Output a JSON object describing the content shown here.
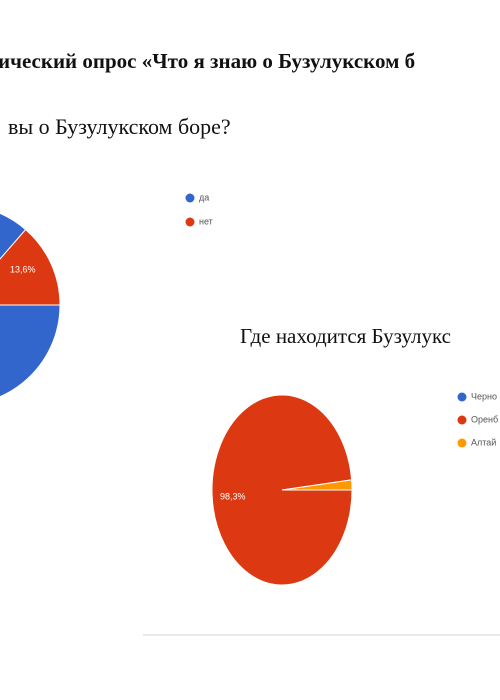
{
  "title": "ический опрос «Что я знаю о Бузулукском б",
  "chart_data": [
    {
      "type": "pie",
      "title": "вы о Бузулукском боре?",
      "categories": [
        "да",
        "нет"
      ],
      "values": [
        86.4,
        13.6
      ],
      "value_labels": [
        null,
        "13,6%"
      ],
      "colors": [
        "#3366cc",
        "#dc3912"
      ]
    },
    {
      "type": "pie",
      "title": "Где находится Бузулукс",
      "categories": [
        "Черно",
        "Оренб",
        "Алтай"
      ],
      "values": [
        0,
        98.3,
        1.7
      ],
      "value_labels": [
        null,
        "98,3%",
        null
      ],
      "colors": [
        "#3366cc",
        "#dc3912",
        "#ff9900"
      ]
    }
  ]
}
